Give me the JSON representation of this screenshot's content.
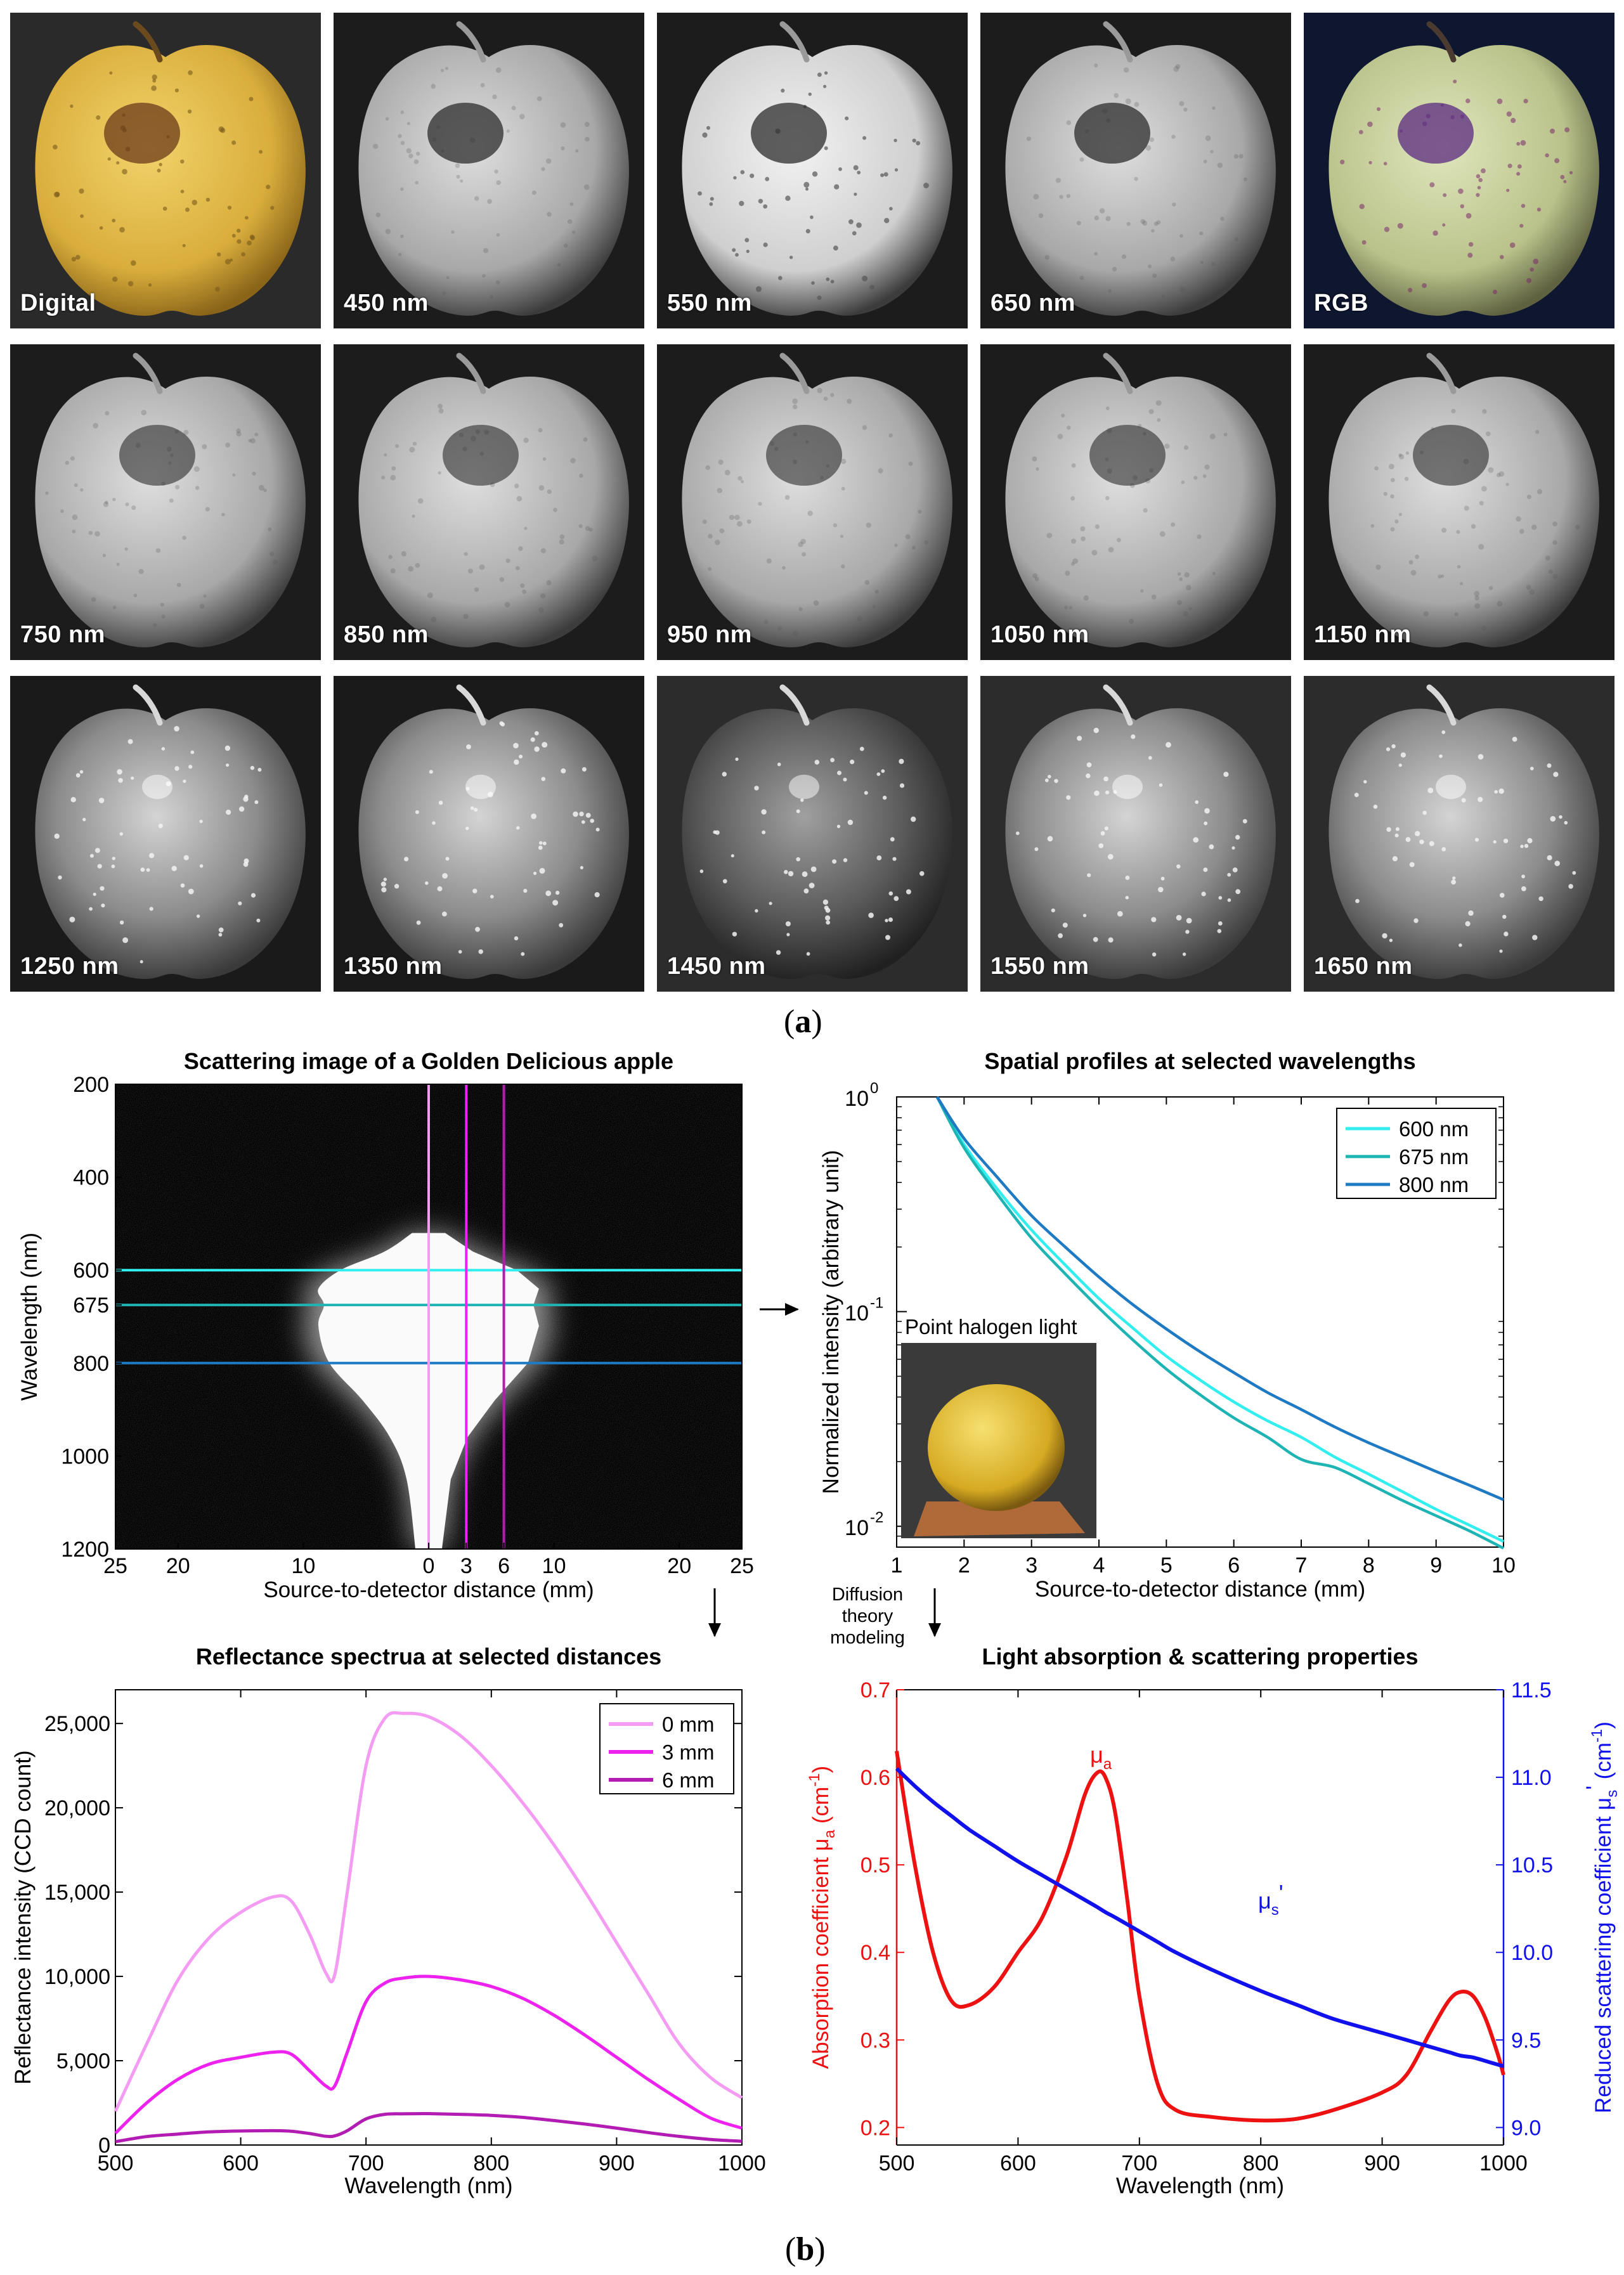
{
  "panel_a": {
    "label": "a",
    "tiles": [
      {
        "label": "Digital",
        "kind": "digital"
      },
      {
        "label": "450 nm",
        "kind": "gray"
      },
      {
        "label": "550 nm",
        "kind": "gray"
      },
      {
        "label": "650 nm",
        "kind": "gray"
      },
      {
        "label": "RGB",
        "kind": "rgb"
      },
      {
        "label": "750 nm",
        "kind": "gray"
      },
      {
        "label": "850 nm",
        "kind": "gray"
      },
      {
        "label": "950 nm",
        "kind": "gray"
      },
      {
        "label": "1050 nm",
        "kind": "gray"
      },
      {
        "label": "1150 nm",
        "kind": "gray"
      },
      {
        "label": "1250 nm",
        "kind": "swir"
      },
      {
        "label": "1350 nm",
        "kind": "swir"
      },
      {
        "label": "1450 nm",
        "kind": "swir"
      },
      {
        "label": "1550 nm",
        "kind": "swir"
      },
      {
        "label": "1650 nm",
        "kind": "swir"
      }
    ]
  },
  "panel_b_label": "b",
  "annotations": {
    "diffusion_line1": "Diffusion",
    "diffusion_line2": "theory",
    "diffusion_line3": "modeling",
    "inset_label": "Point halogen light"
  },
  "colors": {
    "cyan600": "#33eeee",
    "teal675": "#1fb4b4",
    "blue800": "#1f7ac4",
    "pink0": "#f49cf4",
    "magenta3": "#ee22ee",
    "purple6": "#b21cb2",
    "red": "#ee1111",
    "blue": "#1111ee"
  },
  "chart_data": [
    {
      "id": "scatter_image",
      "type": "heatmap",
      "title": "Scattering image of a Golden Delicious apple",
      "xlabel": "Source-to-detector distance (mm)",
      "ylabel": "Wavelength (nm)",
      "xlim": [
        -25,
        25
      ],
      "ylim": [
        200,
        1200
      ],
      "x_ticks": [
        -25,
        -20,
        -10,
        0,
        3,
        6,
        10,
        20,
        25
      ],
      "x_tick_labels": [
        "25",
        "20",
        "10",
        "0",
        "3",
        "6",
        "10",
        "20",
        "25"
      ],
      "y_ticks": [
        200,
        400,
        600,
        675,
        800,
        1000,
        1200
      ],
      "y_tick_labels": [
        "200",
        "400",
        "600",
        "675",
        "800",
        "1000",
        "1200"
      ],
      "horizontal_lines": [
        {
          "wavelength": 600,
          "color": "cyan600"
        },
        {
          "wavelength": 675,
          "color": "teal675"
        },
        {
          "wavelength": 800,
          "color": "blue800"
        }
      ],
      "vertical_lines": [
        {
          "distance": 0,
          "color": "pink0"
        },
        {
          "distance": 3,
          "color": "magenta3"
        },
        {
          "distance": 6,
          "color": "purple6"
        }
      ]
    },
    {
      "id": "spatial_profiles",
      "type": "line",
      "title": "Spatial profiles at selected wavelengths",
      "xlabel": "Source-to-detector distance (mm)",
      "ylabel": "Normalized intensity (arbitrary unit)",
      "yscale": "log",
      "xlim": [
        1,
        10
      ],
      "ylim": [
        0.008,
        1
      ],
      "x_ticks": [
        1,
        2,
        3,
        4,
        5,
        6,
        7,
        8,
        9,
        10
      ],
      "y_ticks": [
        {
          "value": 1,
          "base": "10",
          "exp": "0"
        },
        {
          "value": 0.1,
          "base": "10",
          "exp": "-1"
        },
        {
          "value": 0.01,
          "base": "10",
          "exp": "-2"
        }
      ],
      "legend_position": "top-right",
      "x": [
        1.6,
        2,
        2.5,
        3,
        3.5,
        4,
        4.5,
        5,
        5.5,
        6,
        6.5,
        7,
        7.5,
        8,
        8.5,
        9,
        9.5,
        10
      ],
      "series": [
        {
          "name": "600 nm",
          "color": "cyan600",
          "values": [
            1.0,
            0.6,
            0.37,
            0.24,
            0.165,
            0.115,
            0.084,
            0.062,
            0.048,
            0.038,
            0.031,
            0.026,
            0.021,
            0.0175,
            0.0145,
            0.012,
            0.0101,
            0.0085
          ]
        },
        {
          "name": "675 nm",
          "color": "teal675",
          "values": [
            1.0,
            0.58,
            0.35,
            0.22,
            0.15,
            0.104,
            0.074,
            0.054,
            0.041,
            0.032,
            0.026,
            0.0205,
            0.0188,
            0.0158,
            0.0132,
            0.0112,
            0.0095,
            0.0079
          ]
        },
        {
          "name": "800 nm",
          "color": "blue800",
          "values": [
            1.0,
            0.64,
            0.42,
            0.28,
            0.2,
            0.145,
            0.108,
            0.083,
            0.065,
            0.052,
            0.042,
            0.035,
            0.029,
            0.0245,
            0.021,
            0.018,
            0.0155,
            0.0133
          ]
        }
      ]
    },
    {
      "id": "reflectance_spectra",
      "type": "line",
      "title": "Reflectance spectrua at selected distances",
      "xlabel": "Wavelength (nm)",
      "ylabel": "Reflectance intensity (CCD count)",
      "xlim": [
        500,
        1000
      ],
      "ylim": [
        0,
        27000
      ],
      "x_ticks": [
        500,
        600,
        700,
        800,
        900,
        1000
      ],
      "y_ticks": [
        0,
        5000,
        10000,
        15000,
        20000,
        25000
      ],
      "y_tick_labels": [
        "0",
        "5,000",
        "10,000",
        "15,000",
        "20,000",
        "25,000"
      ],
      "legend_position": "top-right",
      "x": [
        500,
        525,
        550,
        575,
        600,
        625,
        640,
        655,
        668,
        675,
        685,
        700,
        715,
        730,
        750,
        775,
        800,
        825,
        850,
        875,
        900,
        925,
        950,
        975,
        1000
      ],
      "series": [
        {
          "name": "0 mm",
          "color": "pink0",
          "values": [
            2000,
            6000,
            9800,
            12300,
            13800,
            14700,
            14500,
            12500,
            10200,
            10100,
            15000,
            22500,
            25300,
            25600,
            25400,
            24300,
            22500,
            20300,
            17800,
            15000,
            12000,
            9000,
            6000,
            4000,
            2800
          ]
        },
        {
          "name": "3 mm",
          "color": "magenta3",
          "values": [
            700,
            2500,
            3900,
            4800,
            5200,
            5500,
            5400,
            4400,
            3500,
            3500,
            5500,
            8500,
            9600,
            9900,
            10000,
            9800,
            9400,
            8700,
            7700,
            6500,
            5200,
            3900,
            2700,
            1600,
            1000
          ]
        },
        {
          "name": "6 mm",
          "color": "purple6",
          "values": [
            200,
            500,
            650,
            780,
            830,
            850,
            820,
            680,
            520,
            540,
            850,
            1550,
            1820,
            1850,
            1860,
            1820,
            1760,
            1640,
            1450,
            1240,
            1000,
            740,
            510,
            330,
            220
          ]
        }
      ]
    },
    {
      "id": "absorption_scattering",
      "type": "line",
      "title": "Light absorption & scattering properties",
      "xlabel": "Wavelength (nm)",
      "xlim": [
        500,
        1000
      ],
      "x_ticks": [
        500,
        600,
        700,
        800,
        900,
        1000
      ],
      "left_axis": {
        "label_main": "Absorption coefficient μ",
        "label_sub": "a",
        "label_unit": " (cm",
        "label_exp": "-1",
        "label_close": ")",
        "ylim": [
          0.18,
          0.7
        ],
        "ticks": [
          0.2,
          0.3,
          0.4,
          0.5,
          0.6,
          0.7
        ],
        "tick_labels": [
          "0.2",
          "0.3",
          "0.4",
          "0.5",
          "0.6",
          "0.7"
        ],
        "color": "red"
      },
      "right_axis": {
        "label_main": "Reduced scattering coefficient μ",
        "label_sub": "s",
        "label_prime": "'",
        "label_unit": " (cm",
        "label_exp": "-1",
        "label_close": ")",
        "ylim": [
          8.9,
          11.5
        ],
        "ticks": [
          9.0,
          9.5,
          10.0,
          10.5,
          11.0,
          11.5
        ],
        "tick_labels": [
          "9.0",
          "9.5",
          "10.0",
          "10.5",
          "11.0",
          "11.5"
        ],
        "color": "blue"
      },
      "x": [
        500,
        515,
        530,
        545,
        560,
        580,
        600,
        620,
        640,
        655,
        665,
        672,
        680,
        690,
        700,
        715,
        730,
        760,
        800,
        830,
        860,
        900,
        920,
        940,
        955,
        965,
        975,
        985,
        995,
        1000
      ],
      "series": [
        {
          "name": "μa",
          "sub_label_main": "μ",
          "sub_label_sub": "a",
          "axis": "left",
          "color": "red",
          "values": [
            0.63,
            0.5,
            0.4,
            0.345,
            0.34,
            0.36,
            0.4,
            0.44,
            0.51,
            0.58,
            0.605,
            0.6,
            0.56,
            0.46,
            0.35,
            0.25,
            0.22,
            0.212,
            0.208,
            0.21,
            0.22,
            0.24,
            0.26,
            0.31,
            0.345,
            0.355,
            0.35,
            0.325,
            0.285,
            0.26
          ]
        },
        {
          "name": "μs'",
          "sub_label_main": "μ",
          "sub_label_sub": "s",
          "sub_label_prime": "'",
          "axis": "right",
          "color": "blue",
          "values": [
            11.05,
            10.95,
            10.86,
            10.78,
            10.7,
            10.61,
            10.52,
            10.44,
            10.36,
            10.3,
            10.26,
            10.23,
            10.2,
            10.16,
            10.12,
            10.06,
            10.0,
            9.9,
            9.78,
            9.7,
            9.62,
            9.54,
            9.5,
            9.46,
            9.43,
            9.41,
            9.4,
            9.38,
            9.36,
            9.35
          ]
        }
      ]
    }
  ]
}
